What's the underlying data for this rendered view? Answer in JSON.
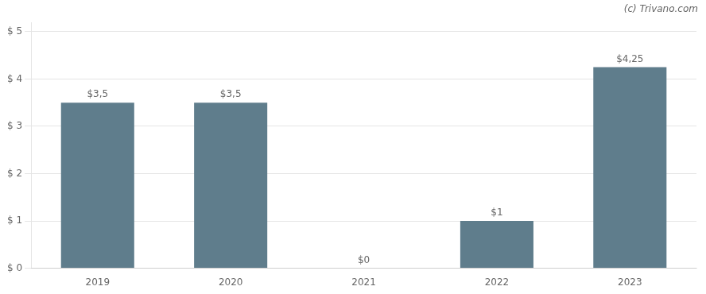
{
  "chart_data": {
    "type": "bar",
    "categories": [
      "2019",
      "2020",
      "2021",
      "2022",
      "2023"
    ],
    "values": [
      3.5,
      3.5,
      0.0,
      1.0,
      4.25
    ],
    "value_labels": [
      "$3,5",
      "$3,5",
      "$0",
      "$1",
      "$4,25"
    ],
    "data_labels": true,
    "color": "#5f7d8c",
    "ylim": [
      0,
      5.2
    ],
    "yticks": [
      {
        "value": 0,
        "label": "$ 0"
      },
      {
        "value": 1,
        "label": "$ 1"
      },
      {
        "value": 2,
        "label": "$ 2"
      },
      {
        "value": 3,
        "label": "$ 3"
      },
      {
        "value": 4,
        "label": "$ 4"
      },
      {
        "value": 5,
        "label": "$ 5"
      }
    ],
    "grid": true,
    "annotations": [
      "(c) Trivano.com"
    ]
  }
}
